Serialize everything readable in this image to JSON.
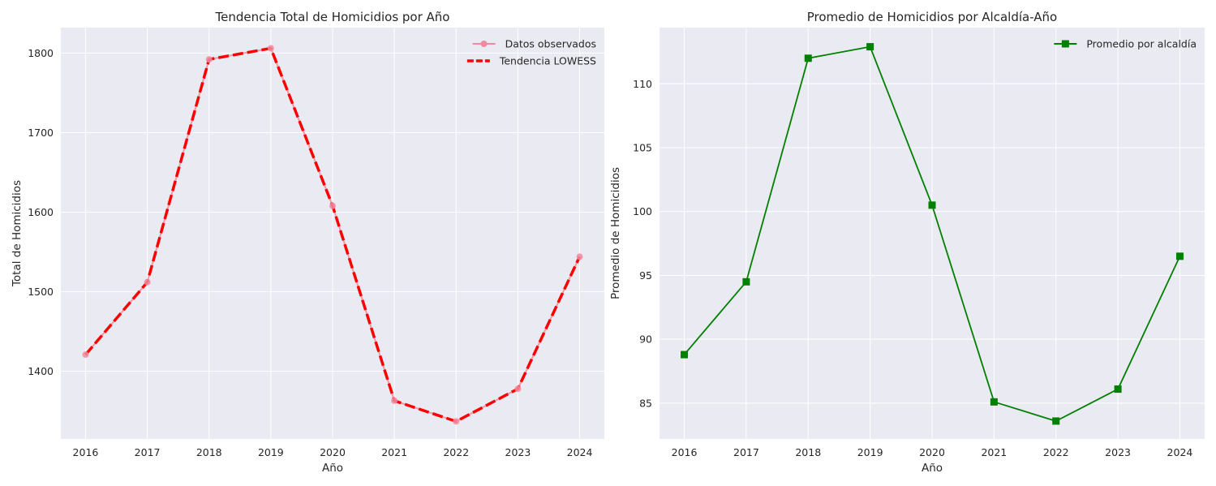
{
  "chart_data": [
    {
      "type": "line",
      "title": "Tendencia Total de Homicidios por Año",
      "xlabel": "Año",
      "ylabel": "Total de Homicidios",
      "x": [
        2016,
        2017,
        2018,
        2019,
        2020,
        2021,
        2022,
        2023,
        2024
      ],
      "xlim": [
        2015.6,
        2024.4
      ],
      "ylim": [
        1315,
        1832
      ],
      "yticks": [
        1400,
        1500,
        1600,
        1700,
        1800
      ],
      "grid": true,
      "legend_position": "top-right",
      "series": [
        {
          "name": "Datos observados",
          "values": [
            1421,
            1512,
            1792,
            1806,
            1608,
            1363,
            1337,
            1378,
            1544
          ],
          "color": "#f08aa0",
          "style": "solid",
          "marker": "circle"
        },
        {
          "name": "Tendencia LOWESS",
          "values": [
            1421,
            1512,
            1792,
            1806,
            1608,
            1363,
            1337,
            1378,
            1544
          ],
          "color": "#ff0000",
          "style": "dashed",
          "marker": "none"
        }
      ]
    },
    {
      "type": "line",
      "title": "Promedio de Homicidios por Alcaldía-Año",
      "xlabel": "Año",
      "ylabel": "Promedio de Homicidios",
      "x": [
        2016,
        2017,
        2018,
        2019,
        2020,
        2021,
        2022,
        2023,
        2024
      ],
      "xlim": [
        2015.6,
        2024.4
      ],
      "ylim": [
        82.2,
        114.4
      ],
      "yticks": [
        85,
        90,
        95,
        100,
        105,
        110
      ],
      "grid": true,
      "legend_position": "top-right",
      "series": [
        {
          "name": "Promedio por alcaldía",
          "values": [
            88.8,
            94.5,
            112.0,
            112.9,
            100.5,
            85.1,
            83.6,
            86.1,
            96.5
          ],
          "color": "#008000",
          "style": "solid",
          "marker": "square"
        }
      ]
    }
  ]
}
